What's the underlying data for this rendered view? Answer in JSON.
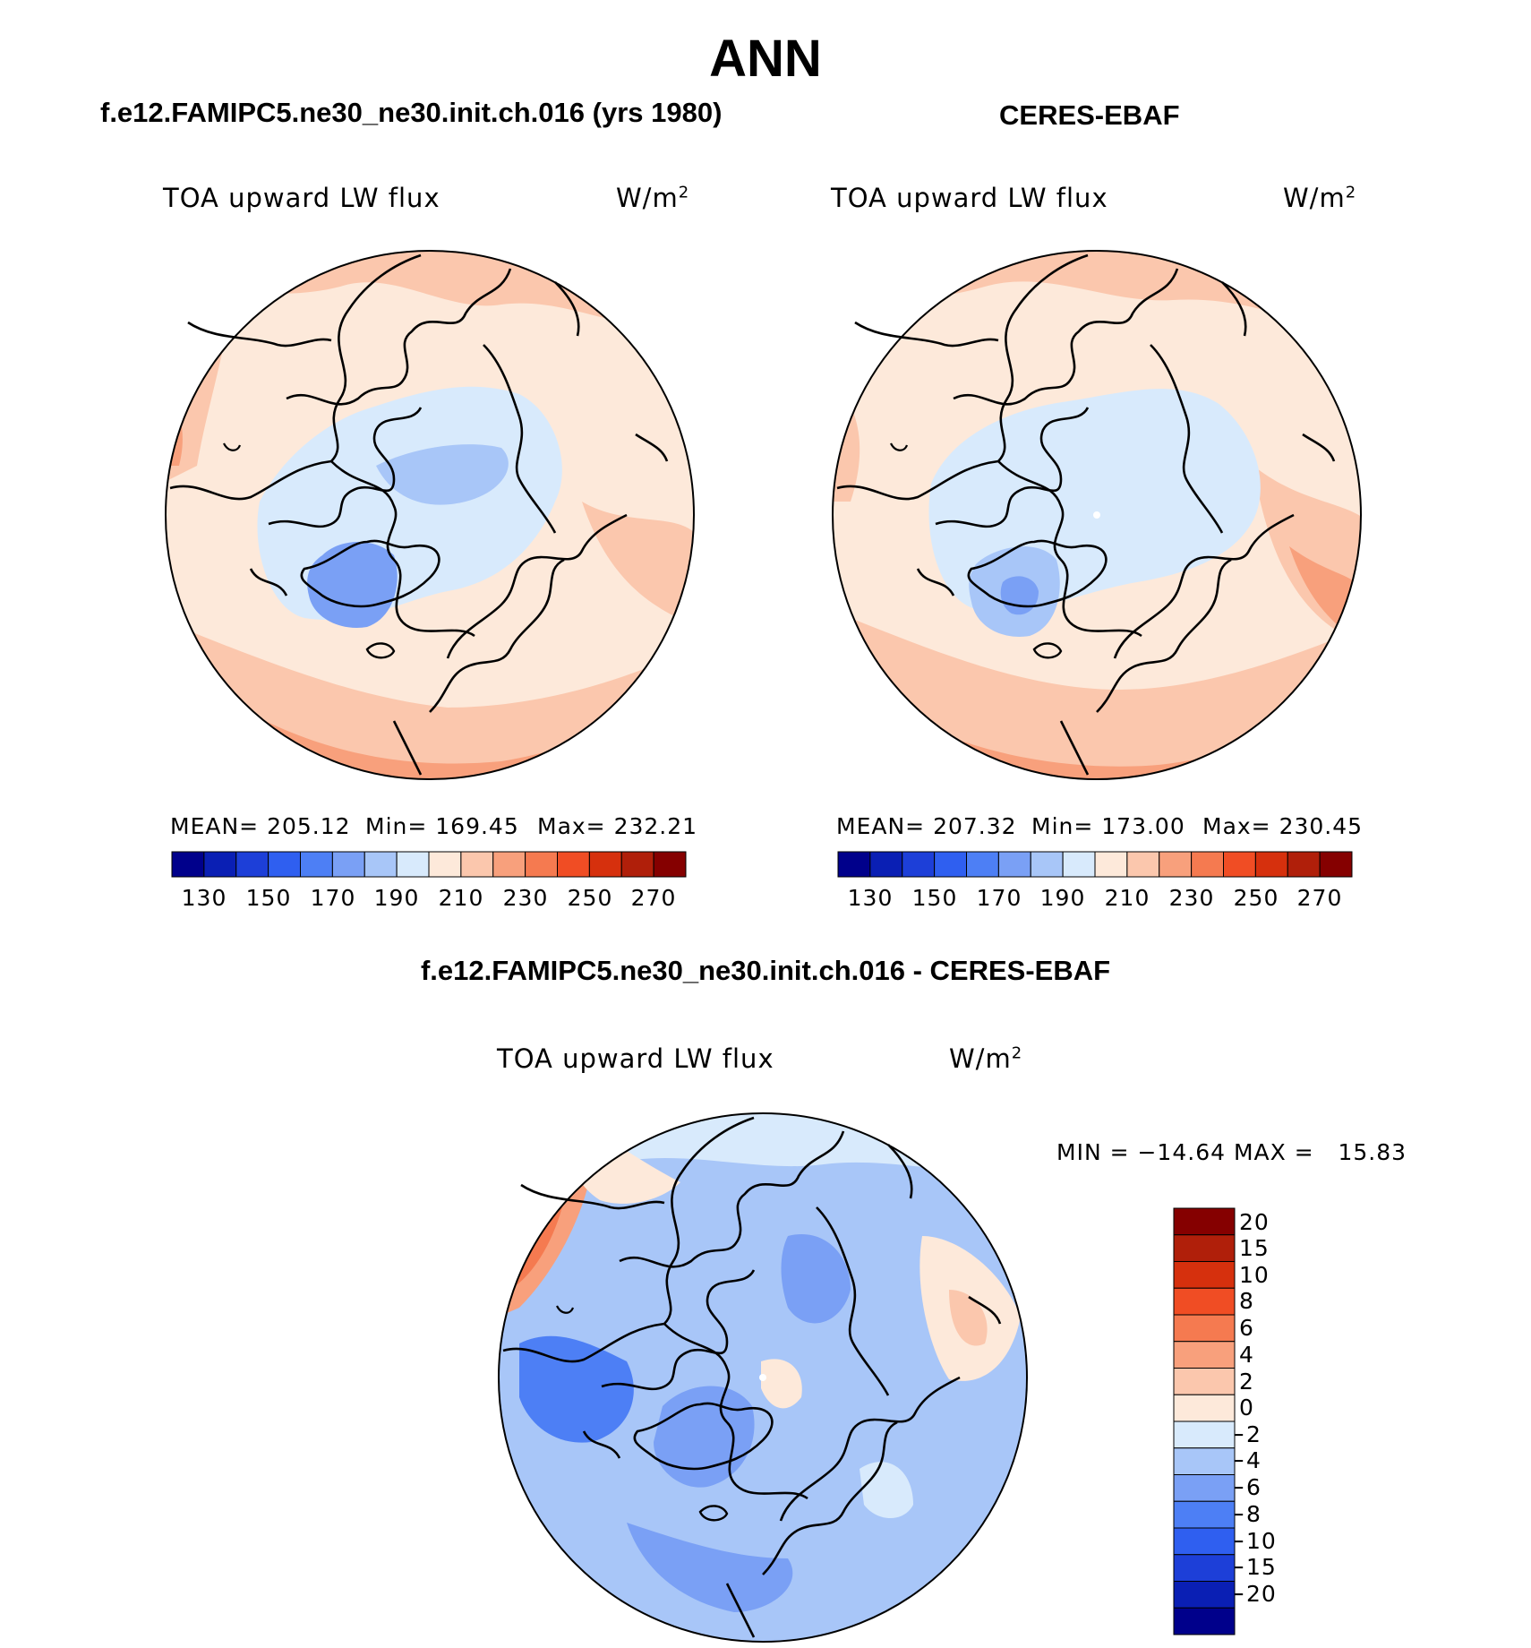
{
  "page": {
    "title": "ANN",
    "model_title": "f.e12.FAMIPC5.ne30_ne30.init.ch.016 (yrs 1980)",
    "obs_title": "CERES-EBAF",
    "diff_title": "f.e12.FAMIPC5.ne30_ne30.init.ch.016 - CERES-EBAF"
  },
  "panels": {
    "model": {
      "variable": "TOA upward LW flux",
      "units": "W/m",
      "units_exp": "2",
      "mean": "MEAN= 205.12",
      "min": "Min= 169.45",
      "max": "Max= 232.21"
    },
    "obs": {
      "variable": "TOA upward LW flux",
      "units": "W/m",
      "units_exp": "2",
      "mean": "MEAN= 207.32",
      "min": "Min= 173.00",
      "max": "Max= 230.45"
    },
    "diff": {
      "variable": "TOA upward LW flux",
      "units": "W/m",
      "units_exp": "2",
      "minmax": "MIN = −14.64 MAX =   15.83"
    }
  },
  "colorbars": {
    "absolute": {
      "ticks": [
        "130",
        "150",
        "170",
        "190",
        "210",
        "230",
        "250",
        "270"
      ],
      "colors": [
        "#00008b",
        "#0a1fb4",
        "#1d3fd8",
        "#2f5ff0",
        "#4d7ff5",
        "#7aa0f5",
        "#a8c6f8",
        "#d8eafc",
        "#fde9da",
        "#fbc7ad",
        "#f8a07c",
        "#f57a50",
        "#f04d24",
        "#d6300d",
        "#b01f0a",
        "#850000"
      ]
    },
    "difference": {
      "ticks": [
        "20",
        "15",
        "10",
        "8",
        "6",
        "4",
        "2",
        "0",
        "−2",
        "−4",
        "−6",
        "−8",
        "−10",
        "−15",
        "−20"
      ],
      "colors": [
        "#850000",
        "#b01f0a",
        "#d6300d",
        "#f04d24",
        "#f57a50",
        "#f8a07c",
        "#fbc7ad",
        "#fde9da",
        "#d8eafc",
        "#a8c6f8",
        "#7aa0f5",
        "#4d7ff5",
        "#2f5ff0",
        "#1d3fd8",
        "#0a1fb4",
        "#00008b"
      ]
    }
  },
  "chart_data": [
    {
      "type": "heatmap",
      "title": "f.e12.FAMIPC5.ne30_ne30.init.ch.016 (yrs 1980)",
      "variable": "TOA upward LW flux",
      "units": "W/m2",
      "projection": "north polar stereographic",
      "mean": 205.12,
      "min": 169.45,
      "max": 232.21,
      "contour_levels": [
        130,
        140,
        150,
        160,
        170,
        180,
        190,
        200,
        210,
        220,
        230,
        240,
        250,
        260,
        270
      ]
    },
    {
      "type": "heatmap",
      "title": "CERES-EBAF",
      "variable": "TOA upward LW flux",
      "units": "W/m2",
      "projection": "north polar stereographic",
      "mean": 207.32,
      "min": 173.0,
      "max": 230.45,
      "contour_levels": [
        130,
        140,
        150,
        160,
        170,
        180,
        190,
        200,
        210,
        220,
        230,
        240,
        250,
        260,
        270
      ]
    },
    {
      "type": "heatmap",
      "title": "f.e12.FAMIPC5.ne30_ne30.init.ch.016 - CERES-EBAF",
      "variable": "TOA upward LW flux",
      "units": "W/m2",
      "projection": "north polar stereographic",
      "min": -14.64,
      "max": 15.83,
      "contour_levels": [
        -20,
        -15,
        -10,
        -8,
        -6,
        -4,
        -2,
        0,
        2,
        4,
        6,
        8,
        10,
        15,
        20
      ]
    }
  ]
}
